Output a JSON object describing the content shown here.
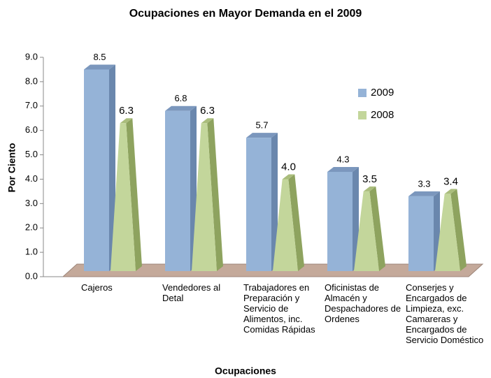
{
  "chart_data": {
    "type": "bar3d",
    "title": "Ocupaciones en Mayor Demanda en el 2009",
    "x_label": "Ocupaciones",
    "y_label": "Por Ciento",
    "categories": [
      "Cajeros",
      "Vendedores al Detal",
      "Trabajadores en Preparación y Servicio de Alimentos, inc. Comidas Rápidas",
      "Oficinistas de Almacén y Despachadores de Ordenes",
      "Conserjes y Encargados de Limpieza, exc. Camareras y Encargados de Servicio Doméstico"
    ],
    "series": [
      {
        "name": "2009",
        "color": "#95b3d7",
        "shape": "box",
        "values": [
          8.5,
          6.8,
          5.7,
          4.3,
          3.3
        ],
        "value_labels": [
          "8.5",
          "6.8",
          "5.7",
          "4.3",
          "3.3"
        ]
      },
      {
        "name": "2008",
        "color": "#c3d69b",
        "shape": "pyramid",
        "values": [
          6.3,
          6.3,
          4.0,
          3.5,
          3.4
        ],
        "value_labels": [
          "6.3",
          "6.3",
          "4.0",
          "3.5",
          "3.4"
        ]
      }
    ],
    "ylim": [
      0,
      9
    ],
    "yticks": [
      {
        "value": 0,
        "label": "0.0"
      },
      {
        "value": 1,
        "label": "1.0"
      },
      {
        "value": 2,
        "label": "2.0"
      },
      {
        "value": 3,
        "label": "3.0"
      },
      {
        "value": 4,
        "label": "4.0"
      },
      {
        "value": 5,
        "label": "5.0"
      },
      {
        "value": 6,
        "label": "6.0"
      },
      {
        "value": 7,
        "label": "7.0"
      },
      {
        "value": 8,
        "label": "8.0"
      },
      {
        "value": 9,
        "label": "9.0"
      }
    ],
    "legend": "right"
  }
}
